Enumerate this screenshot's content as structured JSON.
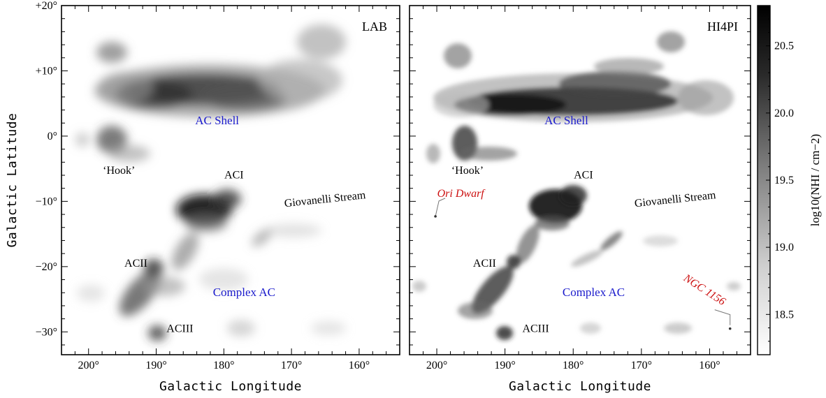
{
  "chart_data": [
    {
      "type": "heatmap",
      "panel_label": "LAB",
      "xlabel": "Galactic Longitude",
      "ylabel": "Galactic Latitude",
      "xlim": [
        204,
        154
      ],
      "ylim": [
        -33.5,
        20
      ],
      "x_ticks": [
        200,
        190,
        180,
        170,
        160
      ],
      "x_tick_labels": [
        "200°",
        "190°",
        "180°",
        "170°",
        "160°"
      ],
      "y_ticks": [
        20,
        10,
        0,
        -10,
        -20,
        -30
      ],
      "y_tick_labels": [
        "+20°",
        "+10°",
        "0°",
        "−10°",
        "−20°",
        "−30°"
      ],
      "annotations": [
        {
          "text": "AC Shell",
          "l": 181,
          "b": 1.8,
          "color": "#1a1acc"
        },
        {
          "text": "‘Hook’",
          "l": 195.5,
          "b": -5.8,
          "color": "#000000"
        },
        {
          "text": "ACI",
          "l": 178.5,
          "b": -6.5,
          "color": "#000000"
        },
        {
          "text": "Giovanelli Stream",
          "l": 165,
          "b": -10.2,
          "color": "#000000",
          "rotate": -6
        },
        {
          "text": "ACII",
          "l": 193,
          "b": -20.0,
          "color": "#000000"
        },
        {
          "text": "Complex AC",
          "l": 177,
          "b": -24.5,
          "color": "#1a1acc"
        },
        {
          "text": "ACIII",
          "l": 186.5,
          "b": -30.0,
          "color": "#000000"
        }
      ]
    },
    {
      "type": "heatmap",
      "panel_label": "HI4PI",
      "xlabel": "Galactic Longitude",
      "xlim": [
        204,
        154
      ],
      "ylim": [
        -33.5,
        20
      ],
      "x_ticks": [
        200,
        190,
        180,
        170,
        160
      ],
      "x_tick_labels": [
        "200°",
        "190°",
        "180°",
        "170°",
        "160°"
      ],
      "annotations": [
        {
          "text": "AC Shell",
          "l": 181,
          "b": 1.8,
          "color": "#1a1acc"
        },
        {
          "text": "‘Hook’",
          "l": 195.5,
          "b": -5.8,
          "color": "#000000"
        },
        {
          "text": "ACI",
          "l": 178.5,
          "b": -6.5,
          "color": "#000000"
        },
        {
          "text": "Ori Dwarf",
          "l": 196.5,
          "b": -9.3,
          "color": "#cc1010"
        },
        {
          "text": "Giovanelli Stream",
          "l": 165,
          "b": -10.2,
          "color": "#000000",
          "rotate": -6
        },
        {
          "text": "ACII",
          "l": 193,
          "b": -20.0,
          "color": "#000000"
        },
        {
          "text": "Complex AC",
          "l": 177,
          "b": -24.5,
          "color": "#1a1acc"
        },
        {
          "text": "NGC 1156",
          "l": 161,
          "b": -24.0,
          "color": "#cc1010",
          "rotate": 33
        },
        {
          "text": "ACIII",
          "l": 185.5,
          "b": -30.0,
          "color": "#000000"
        }
      ],
      "markers": [
        {
          "name": "Ori Dwarf",
          "l": 200.2,
          "b": -12.3
        },
        {
          "name": "NGC 1156",
          "l": 157.0,
          "b": -29.5
        }
      ]
    }
  ],
  "colorbar": {
    "label": "log10(NHI / cm−2)",
    "ticks": [
      20.5,
      20.0,
      19.5,
      19.0,
      18.5
    ],
    "tick_labels": [
      "20.5",
      "20.0",
      "19.5",
      "19.0",
      "18.5"
    ],
    "range": [
      18.2,
      20.8
    ],
    "colormap": "gray_r"
  }
}
